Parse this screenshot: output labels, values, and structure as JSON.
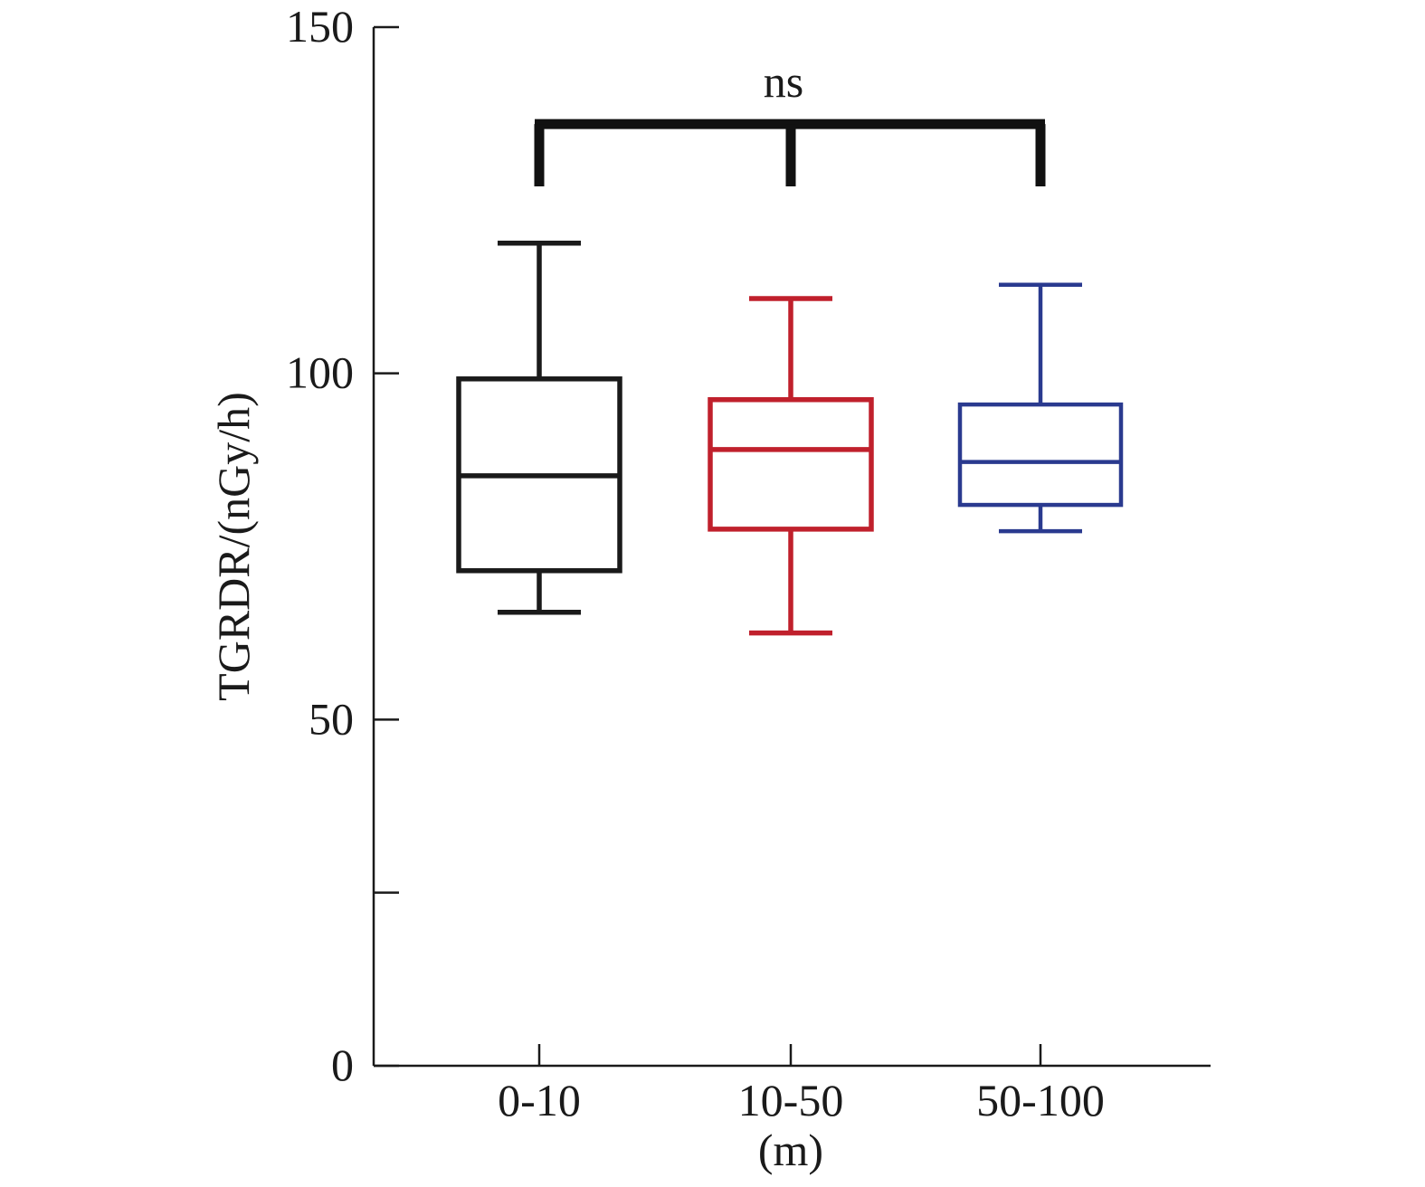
{
  "chart_data": {
    "type": "box",
    "categories": [
      "0-10",
      "10-50",
      "50-100"
    ],
    "xlabel": "(m)",
    "ylabel": "TGRDR/(nGy/h)",
    "ylim": [
      0,
      150
    ],
    "yticks": [
      0,
      25,
      50,
      100,
      150
    ],
    "ytick_labels": [
      "0",
      "",
      "50",
      "100",
      "150"
    ],
    "grid": false,
    "series": [
      {
        "category": "0-10",
        "min": 65.5,
        "q1": 71.5,
        "median": 85.2,
        "q3": 99.2,
        "max": 118.8,
        "color": "#1a1a1a"
      },
      {
        "category": "10-50",
        "min": 62.5,
        "q1": 77.5,
        "median": 89.0,
        "q3": 96.2,
        "max": 110.8,
        "color": "#c0202c"
      },
      {
        "category": "50-100",
        "min": 77.2,
        "q1": 81.0,
        "median": 87.2,
        "q3": 95.5,
        "max": 112.8,
        "color": "#2a3a8f"
      }
    ],
    "annotations": [
      {
        "text": "ns",
        "type": "significance-bracket",
        "from": "0-10",
        "to": "50-100",
        "y_top": 136,
        "y_bottom": 127
      }
    ]
  }
}
